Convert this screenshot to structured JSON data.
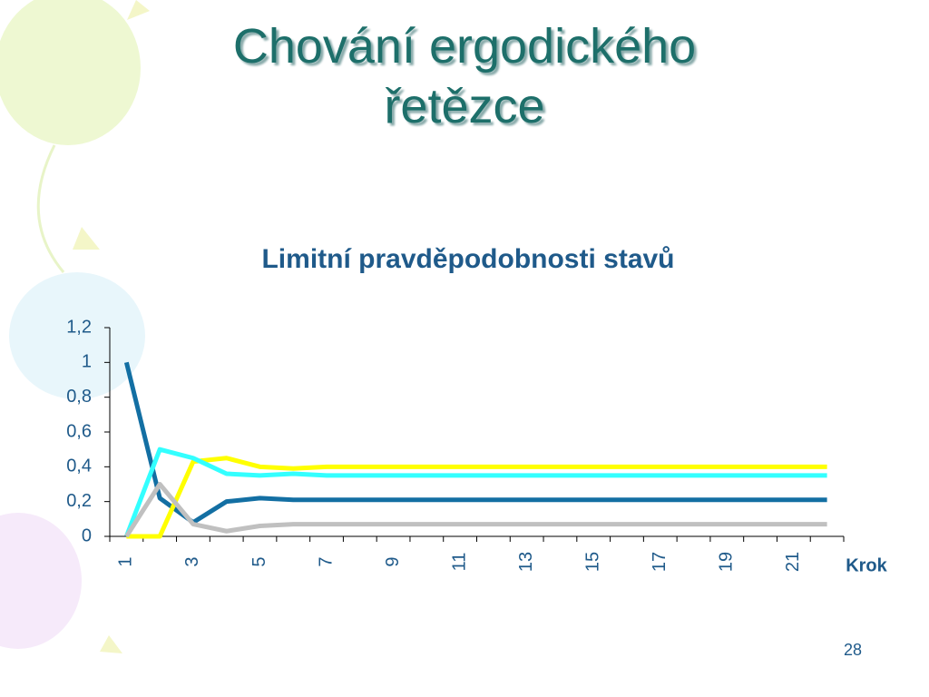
{
  "slide": {
    "title": "Chování ergodického řetězce",
    "page_number": "28"
  },
  "chart_data": {
    "type": "line",
    "title": "Limitní pravděpodobnosti stavů",
    "x_label": "Krok",
    "categories": [
      1,
      null,
      3,
      null,
      5,
      null,
      7,
      null,
      9,
      null,
      11,
      null,
      13,
      null,
      15,
      null,
      17,
      null,
      19,
      null,
      21,
      null
    ],
    "series": [
      {
        "color": "#136fa3",
        "values": [
          1,
          0.22,
          0.08,
          0.2,
          0.22,
          0.21,
          0.21,
          0.21,
          0.21,
          0.21,
          0.21,
          0.21,
          0.21,
          0.21,
          0.21,
          0.21,
          0.21,
          0.21,
          0.21,
          0.21,
          0.21,
          0.21
        ]
      },
      {
        "color": "#ffff00",
        "values": [
          0,
          0,
          0.43,
          0.45,
          0.4,
          0.39,
          0.4,
          0.4,
          0.4,
          0.4,
          0.4,
          0.4,
          0.4,
          0.4,
          0.4,
          0.4,
          0.4,
          0.4,
          0.4,
          0.4,
          0.4,
          0.4
        ]
      },
      {
        "color": "#33ffff",
        "values": [
          0,
          0.5,
          0.45,
          0.36,
          0.35,
          0.36,
          0.35,
          0.35,
          0.35,
          0.35,
          0.35,
          0.35,
          0.35,
          0.35,
          0.35,
          0.35,
          0.35,
          0.35,
          0.35,
          0.35,
          0.35,
          0.35
        ]
      },
      {
        "color": "#c0c0c0",
        "values": [
          0,
          0.3,
          0.07,
          0.03,
          0.06,
          0.07,
          0.07,
          0.07,
          0.07,
          0.07,
          0.07,
          0.07,
          0.07,
          0.07,
          0.07,
          0.07,
          0.07,
          0.07,
          0.07,
          0.07,
          0.07,
          0.07
        ]
      }
    ],
    "ylim": [
      0,
      1.2
    ],
    "yticks": [
      0,
      {
        "value": 0.2,
        "label": "0,2"
      },
      {
        "value": 0.4,
        "label": "0,4"
      },
      {
        "value": 0.6,
        "label": "0,6"
      },
      {
        "value": 0.8,
        "label": "0,8"
      },
      1,
      {
        "value": 1.2,
        "label": "1,2"
      }
    ]
  }
}
